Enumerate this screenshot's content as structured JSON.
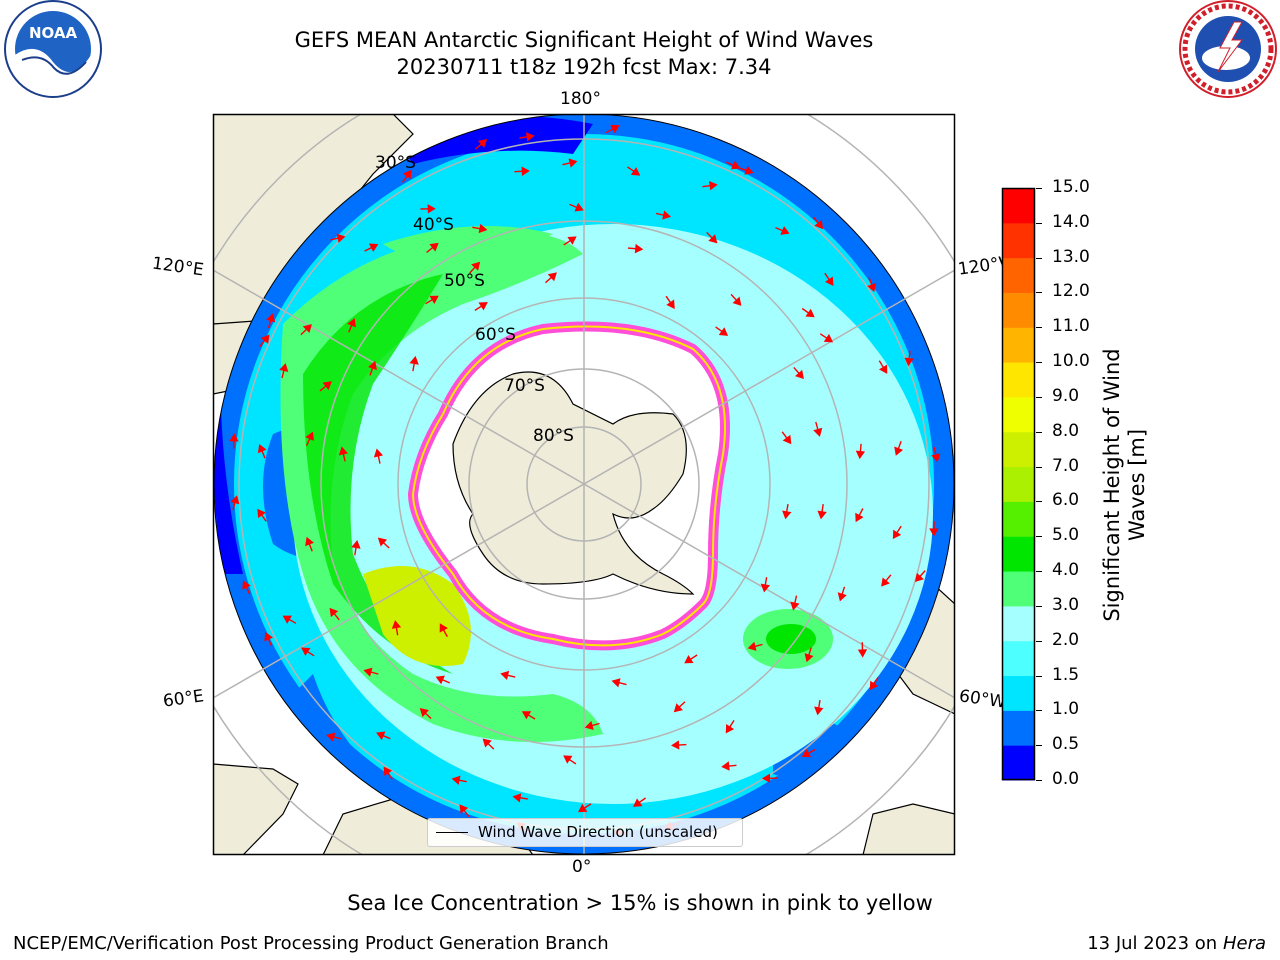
{
  "header": {
    "title_line1": "GEFS MEAN Antarctic Significant Height of Wind Waves",
    "title_line2": "20230711 t18z 192h fcst   Max: 7.34"
  },
  "logos": {
    "left": "noara-logo",
    "right": "nws-logo"
  },
  "map": {
    "projection": "south-polar-stereographic",
    "lon_labels": {
      "top": "180°",
      "bottom": "0°",
      "upper_left": "120°E",
      "upper_right": "120°W",
      "lower_left": "60°E",
      "lower_right": "60°W"
    },
    "lat_labels": [
      "30°S",
      "40°S",
      "50°S",
      "60°S",
      "70°S",
      "80°S"
    ],
    "colors": {
      "land": "#efedd9",
      "ice_edge": "#ff4fd8",
      "arrows": "#ff0000",
      "grid": "#b4b4b4"
    },
    "legend": {
      "label": "Wind Wave Direction (unscaled)"
    }
  },
  "colorbar": {
    "label_line1": "Significant Height of Wind",
    "label_line2": "Waves [m]",
    "ticks": [
      "0.0",
      "0.5",
      "1.0",
      "1.5",
      "2.0",
      "3.0",
      "4.0",
      "5.0",
      "6.0",
      "7.0",
      "8.0",
      "9.0",
      "10.0",
      "11.0",
      "12.0",
      "13.0",
      "14.0",
      "15.0"
    ],
    "colors": [
      "#0000ff",
      "#0070ff",
      "#00e5ff",
      "#4dffff",
      "#a6ffff",
      "#50ff78",
      "#00e600",
      "#55f000",
      "#aaf000",
      "#cdf000",
      "#f0ff00",
      "#ffe600",
      "#ffb400",
      "#ff8c00",
      "#ff6400",
      "#ff3200",
      "#ff0000"
    ]
  },
  "caption": "Sea Ice Concentration > 15% is shown in pink to yellow",
  "footer": {
    "left": "NCEP/EMC/Verification Post Processing Product Generation Branch",
    "right_prefix": "13 Jul 2023 on ",
    "right_host": "Hera"
  }
}
